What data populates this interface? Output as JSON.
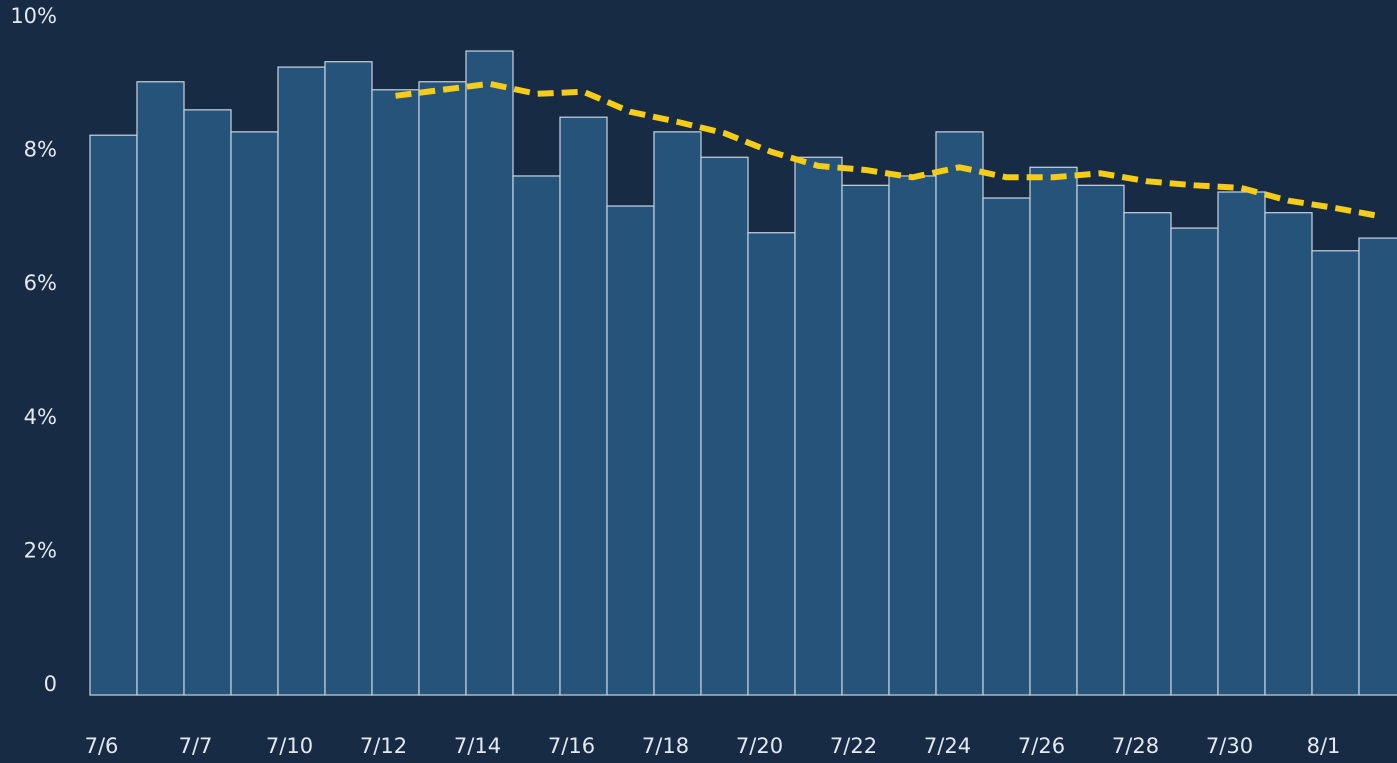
{
  "chart_data": {
    "type": "bar",
    "categories": [
      "7/6",
      null,
      "7/7",
      null,
      "7/10",
      null,
      "7/12",
      null,
      "7/14",
      null,
      "7/16",
      null,
      "7/18",
      null,
      "7/20",
      null,
      "7/22",
      null,
      "7/24",
      null,
      "7/26",
      null,
      "7/28",
      null,
      "7/30",
      null,
      "8/1",
      null
    ],
    "series": [
      {
        "type": "bar",
        "color": "#26537a",
        "values": [
          8.38,
          9.18,
          8.76,
          8.43,
          9.4,
          9.48,
          9.06,
          9.18,
          9.64,
          7.77,
          8.65,
          7.32,
          8.43,
          8.05,
          6.92,
          8.05,
          7.63,
          7.77,
          8.43,
          7.44,
          7.9,
          7.63,
          7.22,
          6.99,
          7.53,
          7.22,
          6.65,
          6.84
        ]
      },
      {
        "type": "line",
        "color": "#f5cc17",
        "dashed": true,
        "values": [
          null,
          null,
          null,
          null,
          null,
          null,
          8.97,
          9.06,
          9.15,
          9.0,
          9.03,
          8.73,
          8.58,
          8.41,
          8.13,
          7.92,
          7.86,
          7.75,
          7.9,
          7.75,
          7.75,
          7.81,
          7.69,
          7.63,
          7.59,
          7.4,
          7.29,
          7.16
        ]
      }
    ],
    "ylim": [
      0,
      10
    ],
    "yticks": [
      0,
      {
        "value": 2,
        "label": "2%"
      },
      {
        "value": 4,
        "label": "4%"
      },
      {
        "value": 6,
        "label": "6%"
      },
      {
        "value": 8,
        "label": "8%"
      },
      {
        "value": 10,
        "label": "10%"
      }
    ]
  }
}
